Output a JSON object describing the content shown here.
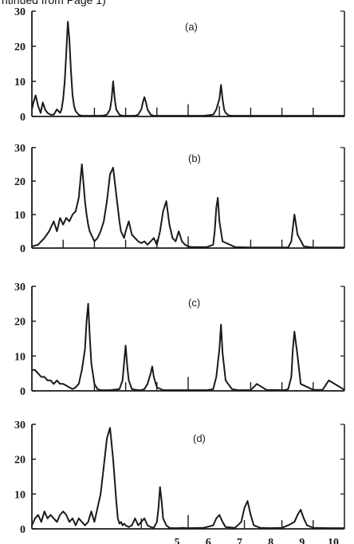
{
  "header": {
    "text": "ntinued from Page 1)"
  },
  "colors": {
    "ink": "#1a1a1a",
    "background": "#ffffff"
  },
  "chart_data": [
    {
      "type": "line",
      "label": "(a)",
      "ylim": [
        0,
        30
      ],
      "yticks": [
        0,
        10,
        20,
        30
      ],
      "xlim": [
        0,
        10
      ],
      "x_tick_marks": [
        2,
        3,
        4,
        5,
        6,
        7,
        8,
        9
      ],
      "grid": false,
      "x": [
        0,
        0.05,
        0.12,
        0.2,
        0.28,
        0.35,
        0.42,
        0.5,
        0.6,
        0.7,
        0.8,
        0.9,
        0.95,
        1.0,
        1.05,
        1.1,
        1.15,
        1.2,
        1.25,
        1.3,
        1.35,
        1.4,
        1.45,
        1.5,
        1.55,
        1.6,
        1.65,
        1.7,
        1.8,
        1.9,
        2.0,
        2.1,
        2.2,
        2.3,
        2.4,
        2.5,
        2.55,
        2.6,
        2.65,
        2.7,
        2.8,
        2.9,
        3.0,
        3.1,
        3.2,
        3.3,
        3.4,
        3.5,
        3.55,
        3.6,
        3.65,
        3.7,
        3.8,
        3.9,
        4.0,
        4.5,
        5.0,
        5.5,
        5.8,
        5.9,
        6.0,
        6.05,
        6.1,
        6.15,
        6.2,
        6.3,
        6.4,
        6.6,
        7.0,
        8.0,
        9.0,
        10.0
      ],
      "values": [
        2,
        4,
        6,
        3,
        1,
        4,
        2,
        1,
        0.5,
        0.5,
        2,
        1,
        2,
        5,
        10,
        18,
        27,
        22,
        13,
        6,
        3,
        1.5,
        1,
        0.5,
        0.3,
        0.2,
        0.2,
        0.2,
        0.2,
        0.2,
        0.2,
        0.2,
        0.2,
        0.3,
        0.5,
        2,
        5,
        10,
        5,
        2,
        0.5,
        0.2,
        0.2,
        0.2,
        0.2,
        0.2,
        0.5,
        2,
        4,
        5.5,
        4,
        2,
        0.5,
        0.2,
        0.2,
        0.2,
        0.2,
        0.2,
        0.5,
        2,
        5,
        9,
        5,
        2,
        1,
        0.3,
        0.2,
        0.2,
        0.2,
        0.2,
        0.2,
        0.2
      ],
      "tick_marks": [
        {
          "x": 2.0,
          "height": 2.5
        },
        {
          "x": 3.0,
          "height": 2.5
        },
        {
          "x": 4.0,
          "height": 2.5
        },
        {
          "x": 5.0,
          "height": 3.5
        },
        {
          "x": 6.0,
          "height": 3.0
        },
        {
          "x": 7.0,
          "height": 2.5
        },
        {
          "x": 8.0,
          "height": 2.5
        },
        {
          "x": 9.0,
          "height": 2.5
        }
      ]
    },
    {
      "type": "line",
      "label": "(b)",
      "ylim": [
        0,
        30
      ],
      "yticks": [
        0,
        10,
        20,
        30
      ],
      "xlim": [
        0,
        10
      ],
      "x_tick_marks": [
        2,
        3,
        4,
        5,
        6,
        7,
        8,
        9
      ],
      "grid": false,
      "x": [
        0,
        0.2,
        0.4,
        0.55,
        0.7,
        0.8,
        0.9,
        1.0,
        1.1,
        1.2,
        1.3,
        1.4,
        1.5,
        1.6,
        1.7,
        1.75,
        1.8,
        1.85,
        1.9,
        1.95,
        2.0,
        2.1,
        2.2,
        2.3,
        2.4,
        2.5,
        2.6,
        2.7,
        2.8,
        2.85,
        2.9,
        2.95,
        3.0,
        3.1,
        3.2,
        3.3,
        3.4,
        3.5,
        3.6,
        3.7,
        3.8,
        3.9,
        4.0,
        4.1,
        4.2,
        4.3,
        4.4,
        4.5,
        4.6,
        4.7,
        4.8,
        4.9,
        5.0,
        5.1,
        5.3,
        5.6,
        5.8,
        5.85,
        5.9,
        5.95,
        6.0,
        6.1,
        6.5,
        7.0,
        8.0,
        8.2,
        8.3,
        8.35,
        8.4,
        8.5,
        8.7,
        9.0,
        10.0
      ],
      "values": [
        0.5,
        1,
        3,
        5,
        8,
        5,
        9,
        7,
        9,
        8,
        10,
        11,
        15,
        25,
        14,
        10,
        7,
        5,
        4,
        3,
        2,
        3,
        5,
        8,
        14,
        22,
        24,
        16,
        8,
        5,
        4,
        3,
        5,
        8,
        4,
        3,
        2,
        1.5,
        2,
        1,
        2,
        3,
        1,
        5,
        11,
        14,
        7,
        3,
        2,
        5,
        2,
        1,
        0.5,
        0.3,
        0.3,
        0.3,
        1,
        5,
        12,
        15,
        8,
        2,
        0.3,
        0.2,
        0.2,
        0.2,
        2,
        6,
        10,
        4,
        0.5,
        0.2,
        0.2
      ],
      "tick_marks": [
        {
          "x": 1.0,
          "height": 2.5
        },
        {
          "x": 2.0,
          "height": 2.5
        },
        {
          "x": 3.0,
          "height": 2.5
        },
        {
          "x": 4.0,
          "height": 2.5
        },
        {
          "x": 5.0,
          "height": 3.5
        },
        {
          "x": 7.0,
          "height": 2.5
        },
        {
          "x": 8.0,
          "height": 2.5
        },
        {
          "x": 9.0,
          "height": 2.5
        }
      ]
    },
    {
      "type": "line",
      "label": "(c)",
      "ylim": [
        0,
        30
      ],
      "yticks": [
        0,
        10,
        20,
        30
      ],
      "xlim": [
        0,
        10
      ],
      "x_tick_marks": [
        2,
        3,
        4,
        5,
        6,
        7,
        8,
        9
      ],
      "grid": false,
      "x": [
        0,
        0.1,
        0.2,
        0.3,
        0.4,
        0.5,
        0.6,
        0.7,
        0.8,
        0.9,
        1.0,
        1.1,
        1.2,
        1.3,
        1.4,
        1.5,
        1.6,
        1.7,
        1.75,
        1.8,
        1.85,
        1.9,
        2.0,
        2.1,
        2.2,
        2.5,
        2.8,
        2.9,
        2.95,
        3.0,
        3.05,
        3.1,
        3.2,
        3.4,
        3.5,
        3.6,
        3.7,
        3.8,
        3.85,
        3.9,
        4.0,
        4.2,
        5.0,
        5.6,
        5.8,
        5.9,
        6.0,
        6.05,
        6.1,
        6.2,
        6.4,
        6.6,
        7.0,
        7.2,
        7.5,
        8.0,
        8.1,
        8.2,
        8.3,
        8.35,
        8.4,
        8.5,
        8.6,
        9.0,
        9.3,
        9.5,
        10.0
      ],
      "values": [
        6,
        6,
        5,
        4,
        4,
        3,
        3,
        2,
        3,
        2,
        2,
        1.5,
        1,
        0.5,
        1,
        2,
        6,
        12,
        20,
        25,
        16,
        8,
        2,
        0.5,
        0.2,
        0.2,
        0.5,
        3,
        8,
        13,
        7,
        3,
        0.5,
        0.2,
        0.2,
        0.5,
        2,
        5,
        7,
        4,
        1,
        0.2,
        0.2,
        0.2,
        0.5,
        4,
        12,
        19,
        11,
        3,
        0.5,
        0.2,
        0.2,
        2,
        0.3,
        0.2,
        0.2,
        0.5,
        4,
        12,
        17,
        10,
        2,
        0.3,
        0.3,
        3,
        0.3
      ],
      "tick_marks": [
        {
          "x": 2.0,
          "height": 2.5
        },
        {
          "x": 3.0,
          "height": 2.5
        },
        {
          "x": 4.0,
          "height": 2.5
        },
        {
          "x": 5.0,
          "height": 4.0
        },
        {
          "x": 7.0,
          "height": 2.5
        },
        {
          "x": 8.0,
          "height": 2.5
        },
        {
          "x": 9.0,
          "height": 2.5
        }
      ]
    },
    {
      "type": "line",
      "label": "(d)",
      "ylim": [
        0,
        30
      ],
      "yticks": [
        0,
        10,
        20,
        30
      ],
      "xlim": [
        0,
        10
      ],
      "x_tick_marks": [
        2,
        3,
        4,
        5,
        6,
        7,
        8,
        9
      ],
      "grid": false,
      "x": [
        0,
        0.1,
        0.2,
        0.3,
        0.4,
        0.5,
        0.6,
        0.7,
        0.8,
        0.9,
        1.0,
        1.1,
        1.2,
        1.3,
        1.4,
        1.5,
        1.6,
        1.7,
        1.8,
        1.9,
        2.0,
        2.1,
        2.2,
        2.3,
        2.4,
        2.5,
        2.6,
        2.7,
        2.75,
        2.8,
        2.85,
        2.9,
        2.95,
        3.0,
        3.1,
        3.2,
        3.3,
        3.4,
        3.5,
        3.6,
        3.7,
        3.8,
        3.9,
        4.0,
        4.05,
        4.1,
        4.15,
        4.2,
        4.3,
        4.4,
        4.5,
        4.55,
        4.6,
        4.65,
        4.7,
        4.8,
        5.0,
        5.5,
        5.8,
        5.9,
        6.0,
        6.1,
        6.2,
        6.5,
        6.7,
        6.8,
        6.9,
        7.0,
        7.1,
        7.3,
        7.6,
        8.0,
        8.2,
        8.4,
        8.5,
        8.6,
        8.7,
        8.8,
        9.0,
        9.5,
        10.0
      ],
      "values": [
        1,
        3,
        4,
        2,
        5,
        3,
        4,
        3,
        2,
        4,
        5,
        4,
        2,
        3,
        1,
        3,
        2,
        1,
        2,
        5,
        2,
        6,
        10,
        18,
        26,
        29,
        20,
        8,
        3,
        1.5,
        2,
        1,
        1.5,
        1,
        0.5,
        1,
        3,
        1,
        2,
        3,
        1,
        0.5,
        0.3,
        2,
        6,
        12,
        8,
        3,
        1,
        0.3,
        0.2,
        0.2,
        0.2,
        0.2,
        0.2,
        0.3,
        0.2,
        0.3,
        1,
        3,
        4,
        2,
        0.5,
        0.3,
        2,
        6,
        8,
        4,
        1,
        0.3,
        0.2,
        0.3,
        1,
        2,
        4,
        5.5,
        3,
        1,
        0.3,
        0.2,
        0.2
      ],
      "tick_marks": [
        {
          "x": 3.5,
          "height": 3.0
        },
        {
          "x": 5.0,
          "height": 4.0
        },
        {
          "x": 6.8,
          "height": 2.5
        },
        {
          "x": 8.0,
          "height": 2.5
        },
        {
          "x": 9.0,
          "height": 2.5
        }
      ]
    }
  ],
  "x_axis": {
    "tick_labels": [
      "5",
      "6",
      "7",
      "8",
      "9",
      "10"
    ],
    "tick_values": [
      5,
      6,
      7,
      8,
      9,
      10
    ]
  }
}
